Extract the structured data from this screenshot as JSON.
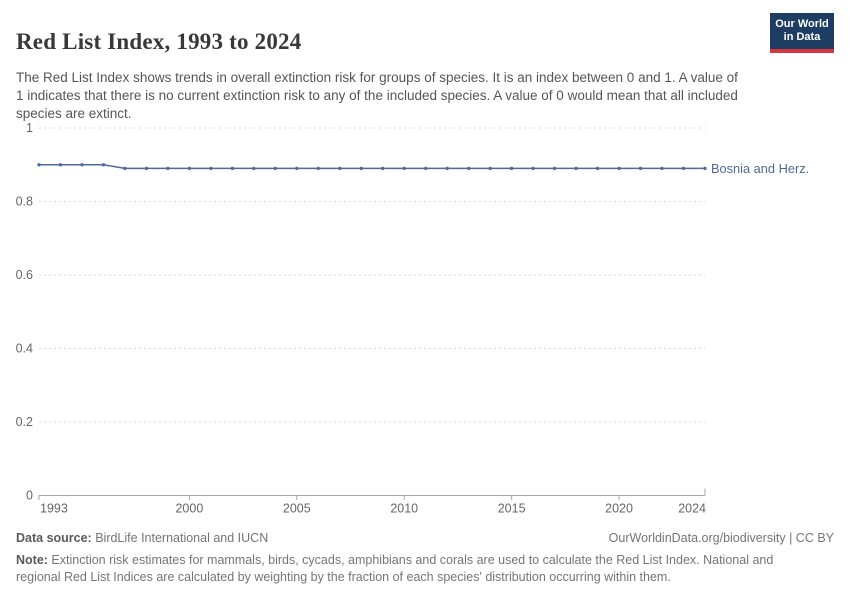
{
  "header": {
    "title": "Red List Index, 1993 to 2024",
    "subtitle": "The Red List Index shows trends in overall extinction risk for groups of species. It is an index between 0 and 1. A value of 1 indicates that there is no current extinction risk to any of the included species. A value of 0 would mean that all included species are extinct.",
    "logo_line1": "Our World",
    "logo_line2": "in Data"
  },
  "chart_data": {
    "type": "line",
    "title": "Red List Index, 1993 to 2024",
    "x": [
      1993,
      1994,
      1995,
      1996,
      1997,
      1998,
      1999,
      2000,
      2001,
      2002,
      2003,
      2004,
      2005,
      2006,
      2007,
      2008,
      2009,
      2010,
      2011,
      2012,
      2013,
      2014,
      2015,
      2016,
      2017,
      2018,
      2019,
      2020,
      2021,
      2022,
      2023,
      2024
    ],
    "series": [
      {
        "name": "Bosnia and Herz.",
        "values": [
          0.9,
          0.9,
          0.9,
          0.9,
          0.89,
          0.89,
          0.89,
          0.89,
          0.89,
          0.89,
          0.89,
          0.89,
          0.89,
          0.89,
          0.89,
          0.89,
          0.89,
          0.89,
          0.89,
          0.89,
          0.89,
          0.89,
          0.89,
          0.89,
          0.89,
          0.89,
          0.89,
          0.89,
          0.89,
          0.89,
          0.89,
          0.89
        ]
      }
    ],
    "xlim": [
      1993,
      2024
    ],
    "ylim": [
      0,
      1
    ],
    "xticks": [
      1993,
      2000,
      2005,
      2010,
      2015,
      2020,
      2024
    ],
    "yticks": [
      1,
      0.8,
      0.6,
      0.4,
      0.2,
      0
    ],
    "ytick_labels": [
      "1",
      "0.8",
      "0.6",
      "0.4",
      "0.2",
      "0"
    ],
    "grid": "horizontal-dashed",
    "legend_position": "end-of-line-label",
    "line_color": "#4c6a9c",
    "marker": "dot"
  },
  "footer": {
    "datasource_label": "Data source:",
    "datasource_text": " BirdLife International and IUCN",
    "attribution": "OurWorldinData.org/biodiversity | CC BY",
    "note_label": "Note:",
    "note_text": " Extinction risk estimates for mammals, birds, cycads, amphibians and corals are used to calculate the Red List Index. National and regional Red List Indices are calculated by weighting by the fraction of each species' distribution occurring within them."
  },
  "colors": {
    "line": "#4c6a9c",
    "logo_navy": "#1d3d63",
    "logo_red": "#d9353f",
    "grid": "#dadada",
    "axis": "#a5a5a5"
  }
}
